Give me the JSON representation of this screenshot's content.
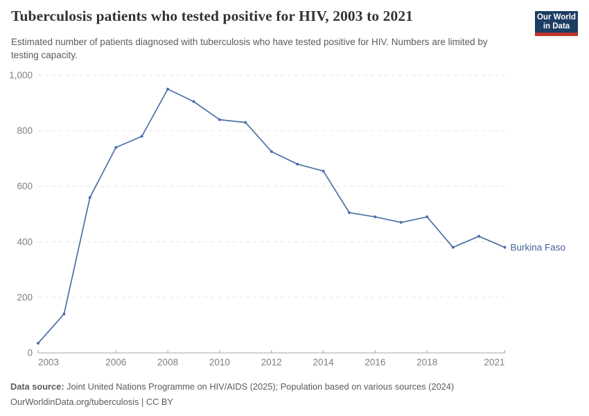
{
  "header": {
    "title": "Tuberculosis patients who tested positive for HIV, 2003 to 2021",
    "subtitle": "Estimated number of patients diagnosed with tuberculosis who have tested positive for HIV. Numbers are limited by testing capacity.",
    "logo": {
      "line1": "Our World",
      "line2": "in Data"
    }
  },
  "chart_data": {
    "type": "line",
    "title": "Tuberculosis patients who tested positive for HIV, 2003 to 2021",
    "x": [
      2003,
      2004,
      2005,
      2006,
      2007,
      2008,
      2009,
      2010,
      2011,
      2012,
      2013,
      2014,
      2015,
      2016,
      2017,
      2018,
      2019,
      2020,
      2021
    ],
    "series": [
      {
        "name": "Burkina Faso",
        "color": "#4c6ea8",
        "values": [
          35,
          140,
          560,
          740,
          780,
          950,
          905,
          840,
          830,
          725,
          680,
          655,
          505,
          490,
          470,
          490,
          380,
          420,
          380
        ]
      }
    ],
    "xlabel": "",
    "ylabel": "",
    "xlim": [
      2003,
      2021
    ],
    "ylim": [
      0,
      1000
    ],
    "xticks": [
      2003,
      2006,
      2008,
      2010,
      2012,
      2014,
      2016,
      2018,
      2021
    ],
    "xtick_labels": [
      "2003",
      "2006",
      "2008",
      "2010",
      "2012",
      "2014",
      "2016",
      "2018",
      "2021"
    ],
    "yticks": [
      0,
      200,
      400,
      600,
      800,
      1000
    ],
    "ytick_labels": [
      "0",
      "200",
      "400",
      "600",
      "800",
      "1,000"
    ],
    "grid": "horizontal-dashed",
    "legend_position": "end-of-line-label"
  },
  "footer": {
    "data_source_label": "Data source:",
    "data_source_text": " Joint United Nations Programme on HIV/AIDS (2025); Population based on various sources (2024)",
    "license_line": "OurWorldinData.org/tuberculosis | CC BY"
  },
  "colors": {
    "line": "#4c6ea8",
    "entity_label": "#44659c",
    "grid": "#e4e4e4",
    "axis": "#a5a5a5",
    "tick_text": "#7f7f7f",
    "title_text": "#333333",
    "subtitle_text": "#5b5b5b",
    "logo_bg": "#1d3d63",
    "logo_red": "#c0362c"
  }
}
